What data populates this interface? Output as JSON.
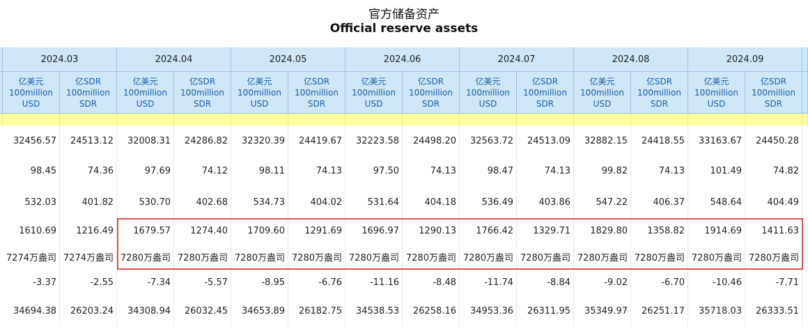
{
  "header": {
    "title_cn": "官方储备资产",
    "title_en": "Official reserve assets"
  },
  "table": {
    "months": [
      "2024.03",
      "2024.04",
      "2024.05",
      "2024.06",
      "2024.07",
      "2024.08",
      "2024.09"
    ],
    "units": [
      [
        "亿美元",
        "100million",
        "USD"
      ],
      [
        "亿SDR",
        "100million",
        "SDR"
      ]
    ],
    "rows": [
      [
        "32456.57",
        "24513.12",
        "32008.31",
        "24286.82",
        "32320.39",
        "24419.67",
        "32223.58",
        "24498.20",
        "32563.72",
        "24513.09",
        "32882.15",
        "24418.55",
        "33163.67",
        "24450.28"
      ],
      [
        "98.45",
        "74.36",
        "97.69",
        "74.12",
        "98.11",
        "74.13",
        "97.50",
        "74.13",
        "98.47",
        "74.13",
        "99.82",
        "74.13",
        "101.49",
        "74.82"
      ],
      [
        "532.03",
        "401.82",
        "530.70",
        "402.68",
        "534.73",
        "404.02",
        "531.64",
        "404.18",
        "536.49",
        "403.86",
        "547.22",
        "406.37",
        "548.64",
        "404.49"
      ],
      [
        "1610.69",
        "1216.49",
        "1679.57",
        "1274.40",
        "1709.60",
        "1291.69",
        "1696.97",
        "1290.13",
        "1766.42",
        "1329.71",
        "1829.80",
        "1358.82",
        "1914.69",
        "1411.63"
      ],
      [
        "7274万盎司",
        "7274万盎司",
        "7280万盎司",
        "7280万盎司",
        "7280万盎司",
        "7280万盎司",
        "7280万盎司",
        "7280万盎司",
        "7280万盎司",
        "7280万盎司",
        "7280万盎司",
        "7280万盎司",
        "7280万盎司",
        "7280万盎司"
      ],
      [
        "-3.37",
        "-2.55",
        "-7.34",
        "-5.57",
        "-8.95",
        "-6.76",
        "-11.16",
        "-8.48",
        "-11.74",
        "-8.84",
        "-9.02",
        "-6.70",
        "-10.46",
        "-7.71"
      ],
      [
        "34694.38",
        "26203.24",
        "34308.94",
        "26032.45",
        "34653.89",
        "26182.75",
        "34538.53",
        "26258.16",
        "34953.36",
        "26311.95",
        "35349.97",
        "26251.17",
        "35718.03",
        "26333.51"
      ]
    ]
  }
}
